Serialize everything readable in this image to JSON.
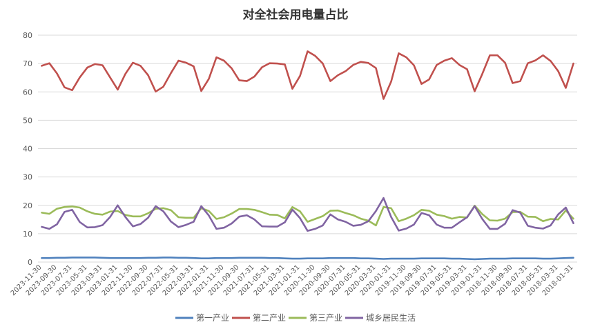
{
  "chart_data": {
    "type": "line",
    "title": "对全社会用电量占比",
    "xlabel": "",
    "ylabel": "",
    "ylim": [
      0,
      80
    ],
    "yticks": [
      0,
      10,
      20,
      30,
      40,
      50,
      60,
      70,
      80
    ],
    "grid": "horizontal",
    "legend_position": "bottom",
    "x": [
      "2023-11-30",
      "2023-10-31",
      "2023-09-30",
      "2023-08-31",
      "2023-07-31",
      "2023-06-30",
      "2023-05-31",
      "2023-04-30",
      "2023-03-31",
      "2023-02-28",
      "2023-01-31",
      "2022-12-31",
      "2022-11-30",
      "2022-10-31",
      "2022-09-30",
      "2022-08-31",
      "2022-07-31",
      "2022-06-30",
      "2022-05-31",
      "2022-04-30",
      "2022-03-31",
      "2022-02-28",
      "2022-01-31",
      "2021-12-31",
      "2021-11-30",
      "2021-10-31",
      "2021-09-30",
      "2021-08-31",
      "2021-07-31",
      "2021-06-30",
      "2021-05-31",
      "2021-04-30",
      "2021-03-31",
      "2021-02-28",
      "2021-01-31",
      "2020-12-31",
      "2020-11-30",
      "2020-10-31",
      "2020-09-30",
      "2020-08-31",
      "2020-07-31",
      "2020-06-30",
      "2020-05-31",
      "2020-04-30",
      "2020-03-31",
      "2020-02-29",
      "2020-01-31",
      "2019-12-31",
      "2019-11-30",
      "2019-10-31",
      "2019-09-30",
      "2019-08-31",
      "2019-07-31",
      "2019-06-30",
      "2019-05-31",
      "2019-04-30",
      "2019-03-31",
      "2019-02-28",
      "2019-01-31",
      "2018-12-31",
      "2018-11-30",
      "2018-10-31",
      "2018-09-30",
      "2018-08-31",
      "2018-07-31",
      "2018-06-30",
      "2018-05-31",
      "2018-04-30",
      "2018-03-31",
      "2018-02-28",
      "2018-01-31"
    ],
    "x_tick_labels": [
      "2023-11-30",
      "2023-09-30",
      "2023-07-31",
      "2023-05-31",
      "2023-03-31",
      "2023-01-31",
      "2022-11-30",
      "2022-09-30",
      "2022-07-31",
      "2022-05-31",
      "2022-03-31",
      "2022-01-31",
      "2021-11-30",
      "2021-09-30",
      "2021-07-31",
      "2021-05-31",
      "2021-03-31",
      "2021-01-31",
      "2020-11-30",
      "2020-09-30",
      "2020-07-31",
      "2020-05-31",
      "2020-03-31",
      "2020-01-31",
      "2019-11-30",
      "2019-09-30",
      "2019-07-31",
      "2019-05-31",
      "2019-03-31",
      "2019-01-31",
      "2018-11-30",
      "2018-09-30",
      "2018-07-31",
      "2018-05-31",
      "2018-03-31",
      "2018-01-31"
    ],
    "series": [
      {
        "name": "第一产业",
        "color": "#4f81bd",
        "values": [
          1.4,
          1.4,
          1.5,
          1.5,
          1.6,
          1.6,
          1.6,
          1.6,
          1.5,
          1.4,
          1.4,
          1.4,
          1.4,
          1.4,
          1.5,
          1.5,
          1.6,
          1.6,
          1.5,
          1.5,
          1.4,
          1.3,
          1.3,
          1.4,
          1.4,
          1.4,
          1.5,
          1.5,
          1.5,
          1.5,
          1.4,
          1.4,
          1.3,
          1.2,
          1.2,
          1.3,
          1.3,
          1.3,
          1.4,
          1.4,
          1.4,
          1.4,
          1.3,
          1.3,
          1.2,
          1.1,
          1.2,
          1.2,
          1.2,
          1.2,
          1.3,
          1.3,
          1.3,
          1.3,
          1.2,
          1.2,
          1.1,
          1.0,
          1.1,
          1.2,
          1.2,
          1.2,
          1.3,
          1.3,
          1.3,
          1.3,
          1.2,
          1.2,
          1.3,
          1.4,
          1.5
        ]
      },
      {
        "name": "第二产业",
        "color": "#c0504d",
        "values": [
          69.2,
          70.1,
          66.5,
          61.6,
          60.6,
          65.1,
          68.6,
          69.8,
          69.4,
          65.1,
          60.8,
          66.3,
          70.3,
          69.2,
          65.9,
          60.1,
          61.8,
          66.6,
          71.0,
          70.3,
          69.0,
          60.3,
          64.6,
          72.2,
          71.0,
          68.3,
          64.1,
          63.8,
          65.4,
          68.7,
          70.1,
          70.0,
          69.7,
          61.1,
          65.6,
          74.3,
          72.7,
          70.0,
          63.8,
          65.9,
          67.3,
          69.5,
          70.6,
          70.2,
          68.4,
          57.5,
          63.6,
          73.6,
          72.2,
          69.4,
          62.8,
          64.4,
          69.5,
          71.0,
          71.9,
          69.5,
          68.0,
          60.2,
          66.3,
          72.9,
          72.9,
          70.3,
          63.1,
          63.8,
          70.1,
          71.1,
          72.9,
          70.9,
          67.3,
          61.4,
          70.0
        ]
      },
      {
        "name": "第三产业",
        "color": "#9bbb59",
        "values": [
          17.4,
          17.0,
          18.8,
          19.4,
          19.6,
          19.2,
          17.9,
          17.0,
          16.7,
          17.8,
          18.0,
          16.6,
          16.1,
          16.1,
          17.2,
          18.8,
          19.0,
          18.3,
          15.8,
          15.6,
          15.6,
          19.0,
          18.0,
          15.2,
          15.8,
          17.1,
          18.7,
          18.7,
          18.4,
          17.6,
          16.7,
          16.6,
          15.4,
          19.4,
          17.9,
          14.2,
          15.2,
          16.2,
          18.1,
          18.2,
          17.3,
          16.5,
          15.3,
          14.6,
          12.9,
          19.4,
          19.0,
          14.4,
          15.3,
          16.5,
          18.4,
          18.1,
          16.7,
          16.2,
          15.3,
          15.9,
          15.7,
          19.9,
          16.9,
          14.7,
          14.6,
          15.3,
          17.6,
          17.7,
          16.0,
          15.9,
          14.4,
          15.2,
          15.0,
          18.2,
          15.3
        ]
      },
      {
        "name": "城乡居民生活",
        "color": "#8064a2",
        "values": [
          12.4,
          11.7,
          13.3,
          17.7,
          18.4,
          14.1,
          12.2,
          12.3,
          13.0,
          15.9,
          20.0,
          15.9,
          12.6,
          13.4,
          15.6,
          19.7,
          17.9,
          14.3,
          12.3,
          13.1,
          14.2,
          19.7,
          16.4,
          11.7,
          12.1,
          13.6,
          16.0,
          16.5,
          15.0,
          12.6,
          12.5,
          12.5,
          14.0,
          18.5,
          15.5,
          11.0,
          11.7,
          12.9,
          16.8,
          15.0,
          14.2,
          12.8,
          13.1,
          14.4,
          18.0,
          22.6,
          15.9,
          11.1,
          11.8,
          13.2,
          17.3,
          16.5,
          13.2,
          12.1,
          12.1,
          14.0,
          15.8,
          19.7,
          15.2,
          11.7,
          11.7,
          13.5,
          18.3,
          17.4,
          12.8,
          12.1,
          11.8,
          12.9,
          16.8,
          19.2,
          13.7
        ]
      }
    ]
  }
}
